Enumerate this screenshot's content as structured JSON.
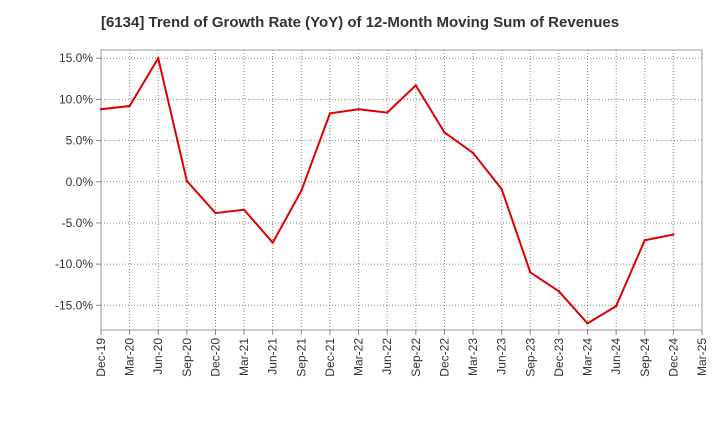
{
  "chart_data": {
    "type": "line",
    "title": "[6134]  Trend of Growth Rate (YoY) of 12-Month Moving Sum of Revenues",
    "xlabel": "",
    "ylabel": "",
    "ylim": [
      -18,
      16
    ],
    "grid": true,
    "legend": "none",
    "x_ticks": [
      "Dec-19",
      "Mar-20",
      "Jun-20",
      "Sep-20",
      "Dec-20",
      "Mar-21",
      "Jun-21",
      "Sep-21",
      "Dec-21",
      "Mar-22",
      "Jun-22",
      "Sep-22",
      "Dec-22",
      "Mar-23",
      "Jun-23",
      "Sep-23",
      "Dec-23",
      "Mar-24",
      "Jun-24",
      "Sep-24",
      "Dec-24",
      "Mar-25"
    ],
    "y_ticks": [
      {
        "value": 15,
        "label": "15.0%"
      },
      {
        "value": 10,
        "label": "10.0%"
      },
      {
        "value": 5,
        "label": "5.0%"
      },
      {
        "value": 0,
        "label": "0.0%"
      },
      {
        "value": -5,
        "label": "-5.0%"
      },
      {
        "value": -10,
        "label": "-10.0%"
      },
      {
        "value": -15,
        "label": "-15.0%"
      }
    ],
    "series": [
      {
        "color": "#e00000",
        "x": [
          "Dec-19",
          "Mar-20",
          "Jun-20",
          "Sep-20",
          "Dec-20",
          "Mar-21",
          "Jun-21",
          "Sep-21",
          "Dec-21",
          "Mar-22",
          "Jun-22",
          "Sep-22",
          "Dec-22",
          "Mar-23",
          "Jun-23",
          "Sep-23",
          "Dec-23",
          "Mar-24",
          "Jun-24",
          "Sep-24",
          "Dec-24"
        ],
        "values": [
          8.8,
          9.2,
          15.0,
          0.1,
          -3.8,
          -3.4,
          -7.4,
          -1.1,
          8.3,
          8.8,
          8.4,
          11.7,
          6.0,
          3.5,
          -0.9,
          -11.0,
          -13.3,
          -17.2,
          -15.1,
          -7.1,
          -6.4
        ]
      }
    ]
  }
}
